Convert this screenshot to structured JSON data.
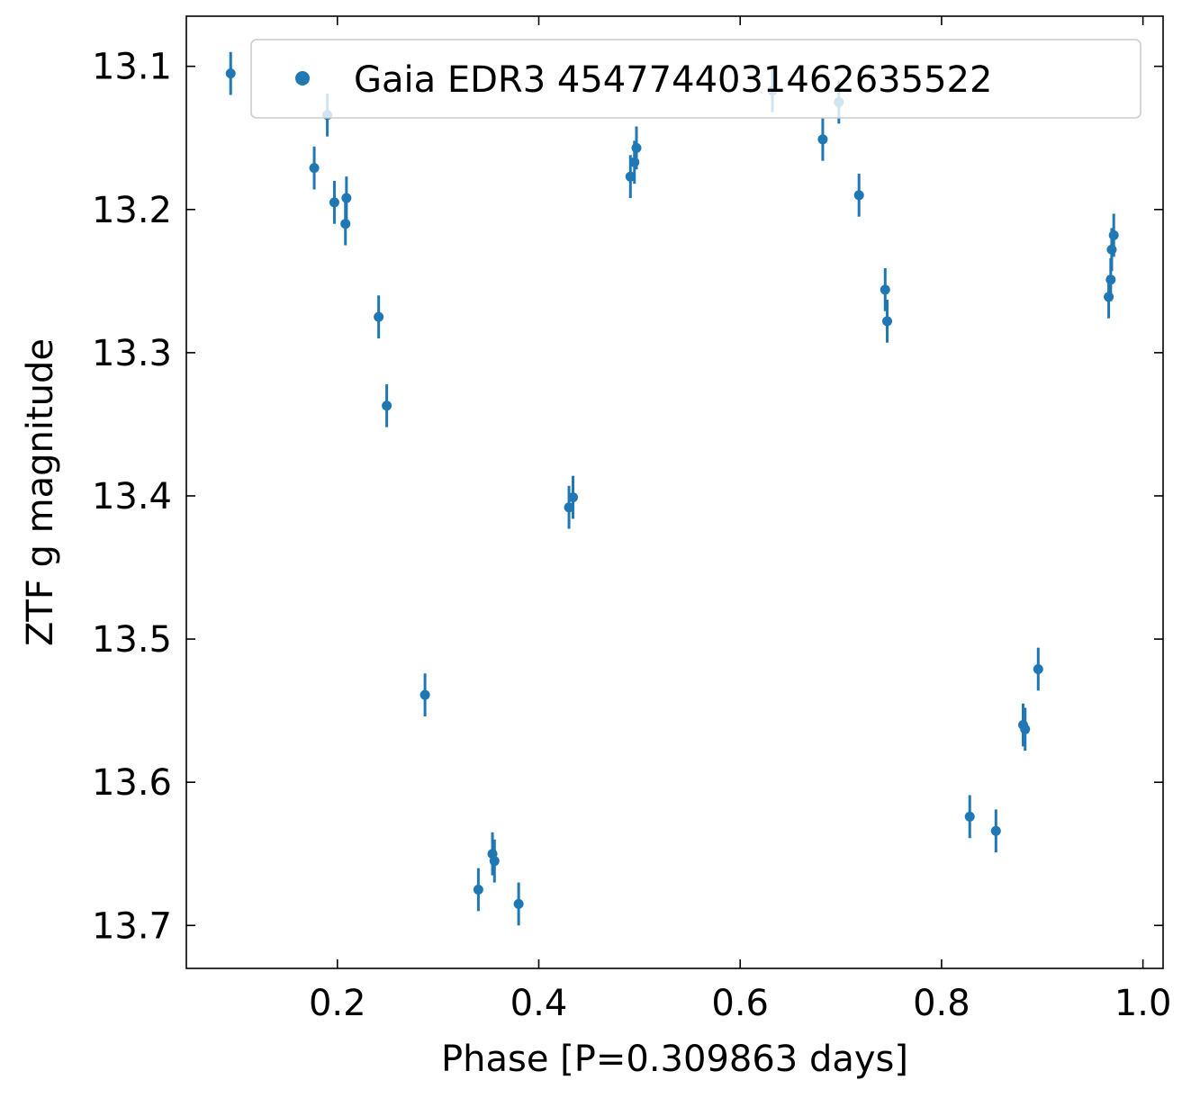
{
  "chart_data": {
    "type": "scatter",
    "xlabel": "Phase [P=0.309863 days]",
    "ylabel": "ZTF g magnitude",
    "xlim": [
      0.05,
      1.02
    ],
    "ylim": [
      13.73,
      13.065
    ],
    "y_inverted": true,
    "xticks": [
      0.2,
      0.4,
      0.6,
      0.8,
      1.0
    ],
    "xtick_labels": [
      "0.2",
      "0.4",
      "0.6",
      "0.8",
      "1.0"
    ],
    "yticks": [
      13.1,
      13.2,
      13.3,
      13.4,
      13.5,
      13.6,
      13.7
    ],
    "ytick_labels": [
      "13.1",
      "13.2",
      "13.3",
      "13.4",
      "13.5",
      "13.6",
      "13.7"
    ],
    "grid": false,
    "legend": {
      "position": "top-right",
      "entries": [
        "Gaia EDR3 4547744031462635522"
      ]
    },
    "series": [
      {
        "name": "Gaia EDR3 4547744031462635522",
        "color": "#1f77b4",
        "marker": "circle",
        "points": [
          {
            "x": 0.094,
            "y": 13.105,
            "err": 0.015
          },
          {
            "x": 0.19,
            "y": 13.134,
            "err": 0.015
          },
          {
            "x": 0.177,
            "y": 13.171,
            "err": 0.015
          },
          {
            "x": 0.197,
            "y": 13.195,
            "err": 0.015
          },
          {
            "x": 0.209,
            "y": 13.192,
            "err": 0.015
          },
          {
            "x": 0.208,
            "y": 13.21,
            "err": 0.015
          },
          {
            "x": 0.241,
            "y": 13.275,
            "err": 0.015
          },
          {
            "x": 0.249,
            "y": 13.337,
            "err": 0.015
          },
          {
            "x": 0.287,
            "y": 13.539,
            "err": 0.015
          },
          {
            "x": 0.34,
            "y": 13.675,
            "err": 0.015
          },
          {
            "x": 0.354,
            "y": 13.65,
            "err": 0.015
          },
          {
            "x": 0.356,
            "y": 13.655,
            "err": 0.015
          },
          {
            "x": 0.38,
            "y": 13.685,
            "err": 0.015
          },
          {
            "x": 0.43,
            "y": 13.408,
            "err": 0.015
          },
          {
            "x": 0.434,
            "y": 13.401,
            "err": 0.015
          },
          {
            "x": 0.491,
            "y": 13.177,
            "err": 0.015
          },
          {
            "x": 0.495,
            "y": 13.167,
            "err": 0.015
          },
          {
            "x": 0.497,
            "y": 13.157,
            "err": 0.015
          },
          {
            "x": 0.632,
            "y": 13.117,
            "err": 0.015
          },
          {
            "x": 0.682,
            "y": 13.151,
            "err": 0.015
          },
          {
            "x": 0.698,
            "y": 13.125,
            "err": 0.015
          },
          {
            "x": 0.718,
            "y": 13.19,
            "err": 0.015
          },
          {
            "x": 0.744,
            "y": 13.256,
            "err": 0.015
          },
          {
            "x": 0.746,
            "y": 13.278,
            "err": 0.015
          },
          {
            "x": 0.828,
            "y": 13.624,
            "err": 0.015
          },
          {
            "x": 0.854,
            "y": 13.634,
            "err": 0.015
          },
          {
            "x": 0.881,
            "y": 13.56,
            "err": 0.015
          },
          {
            "x": 0.883,
            "y": 13.563,
            "err": 0.015
          },
          {
            "x": 0.896,
            "y": 13.521,
            "err": 0.015
          },
          {
            "x": 0.966,
            "y": 13.261,
            "err": 0.015
          },
          {
            "x": 0.968,
            "y": 13.249,
            "err": 0.015
          },
          {
            "x": 0.969,
            "y": 13.228,
            "err": 0.015
          },
          {
            "x": 0.971,
            "y": 13.218,
            "err": 0.015
          }
        ]
      }
    ]
  }
}
